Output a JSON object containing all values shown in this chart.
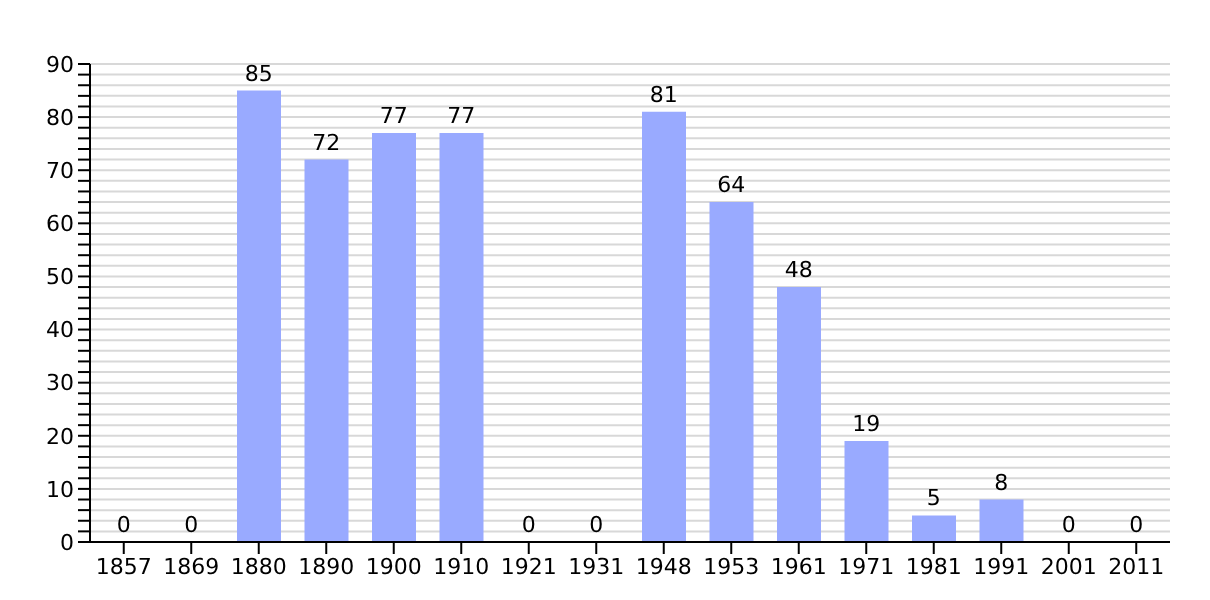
{
  "chart_data": {
    "type": "bar",
    "categories": [
      "1857",
      "1869",
      "1880",
      "1890",
      "1900",
      "1910",
      "1921",
      "1931",
      "1948",
      "1953",
      "1961",
      "1971",
      "1981",
      "1991",
      "2001",
      "2011"
    ],
    "values": [
      0,
      0,
      85,
      72,
      77,
      77,
      0,
      0,
      81,
      64,
      48,
      19,
      5,
      8,
      0,
      0
    ],
    "color": "#99aaff",
    "ylim": [
      0,
      90
    ],
    "yticks": [
      0,
      {
        "value": 2,
        "label": null
      },
      {
        "value": 4,
        "label": null
      },
      {
        "value": 6,
        "label": null
      },
      {
        "value": 8,
        "label": null
      },
      10,
      {
        "value": 12,
        "label": null
      },
      {
        "value": 14,
        "label": null
      },
      {
        "value": 16,
        "label": null
      },
      {
        "value": 18,
        "label": null
      },
      20,
      {
        "value": 22,
        "label": null
      },
      {
        "value": 24,
        "label": null
      },
      {
        "value": 26,
        "label": null
      },
      {
        "value": 28,
        "label": null
      },
      30,
      {
        "value": 32,
        "label": null
      },
      {
        "value": 34,
        "label": null
      },
      {
        "value": 36,
        "label": null
      },
      {
        "value": 38,
        "label": null
      },
      40,
      {
        "value": 42,
        "label": null
      },
      {
        "value": 44,
        "label": null
      },
      {
        "value": 46,
        "label": null
      },
      {
        "value": 48,
        "label": null
      },
      50,
      {
        "value": 52,
        "label": null
      },
      {
        "value": 54,
        "label": null
      },
      {
        "value": 56,
        "label": null
      },
      {
        "value": 58,
        "label": null
      },
      60,
      {
        "value": 62,
        "label": null
      },
      {
        "value": 64,
        "label": null
      },
      {
        "value": 66,
        "label": null
      },
      {
        "value": 68,
        "label": null
      },
      70,
      {
        "value": 72,
        "label": null
      },
      {
        "value": 74,
        "label": null
      },
      {
        "value": 76,
        "label": null
      },
      {
        "value": 78,
        "label": null
      },
      80,
      {
        "value": 82,
        "label": null
      },
      {
        "value": 84,
        "label": null
      },
      {
        "value": 86,
        "label": null
      },
      {
        "value": 88,
        "label": null
      },
      90
    ],
    "grid": "y",
    "data_labels": true
  }
}
